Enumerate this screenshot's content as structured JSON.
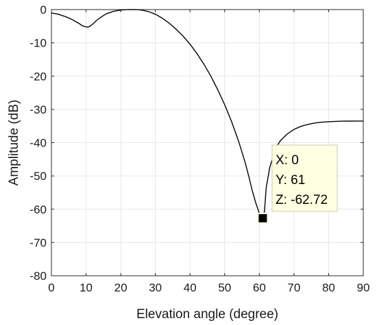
{
  "chart_data": {
    "type": "line",
    "xlabel": "Elevation angle (degree)",
    "ylabel": "Amplitude (dB)",
    "xlim": [
      0,
      90
    ],
    "ylim": [
      -80,
      0
    ],
    "xticks": [
      "0",
      "10",
      "20",
      "30",
      "40",
      "50",
      "60",
      "70",
      "80",
      "90"
    ],
    "yticks": [
      "0",
      "-10",
      "-20",
      "-30",
      "-40",
      "-50",
      "-60",
      "-70",
      "-80"
    ],
    "grid": true,
    "line_color": "#000000",
    "grid_color": "#e6e6e6",
    "series": [
      {
        "x": [
          0,
          2,
          4,
          6,
          8,
          9,
          10,
          10.5,
          11,
          12,
          13,
          14,
          15,
          16,
          18,
          20,
          22,
          23,
          24,
          25,
          26,
          28,
          30,
          32,
          34,
          36,
          38,
          40,
          42,
          44,
          46,
          48,
          50,
          52,
          54,
          56,
          57,
          58,
          59,
          60,
          60.5,
          61,
          61.5,
          62,
          63,
          64,
          65,
          66,
          68,
          70,
          72,
          74,
          76,
          78,
          80,
          82,
          84,
          86,
          88,
          90
        ],
        "y": [
          -1.0,
          -1.4,
          -2.1,
          -3.0,
          -4.2,
          -4.9,
          -5.2,
          -5.25,
          -5.1,
          -4.3,
          -3.3,
          -2.5,
          -1.8,
          -1.2,
          -0.5,
          -0.15,
          -0.03,
          -0.01,
          0.0,
          -0.05,
          -0.15,
          -0.6,
          -1.4,
          -2.6,
          -4.1,
          -5.9,
          -8.0,
          -10.4,
          -13.2,
          -16.4,
          -20.0,
          -24.1,
          -28.6,
          -33.7,
          -39.5,
          -46.3,
          -50.3,
          -54.6,
          -58.2,
          -61.2,
          -62.2,
          -62.72,
          -60.5,
          -53.5,
          -47.5,
          -44.0,
          -41.2,
          -39.5,
          -37.4,
          -36.0,
          -35.1,
          -34.5,
          -34.1,
          -33.85,
          -33.7,
          -33.6,
          -33.55,
          -33.52,
          -33.5,
          -33.5
        ]
      }
    ],
    "datatip": {
      "x": 61,
      "y": -62.72,
      "label_x": "X: 0",
      "label_y": "Y: 61",
      "label_z": "Z: -62.72"
    }
  }
}
